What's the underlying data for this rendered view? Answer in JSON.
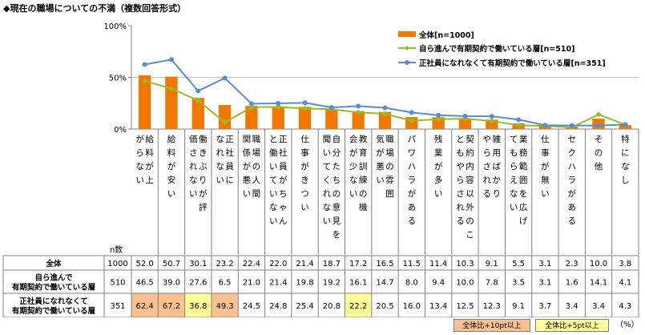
{
  "title": "◆現在の職場についての不満（複数回答形式）",
  "chart_data": {
    "type": "bar+line",
    "yticks": [
      "100%",
      "50%",
      "0%"
    ],
    "ylim": [
      0,
      100
    ],
    "grid": "horizontal at 50%",
    "legend_position": "top-right",
    "categories": [
      "給料が上がらない",
      "給料が安い",
      "働きぶりが評価されない",
      "正社員になれない",
      "職場の人間関係が悪い",
      "正社員がちゃんと働いていない",
      "仕事がきつい",
      "自分たちの意見を聞いてくれない",
      "教育訓練の機会が少ない",
      "職場の雰囲気が悪い",
      "パワハラがある",
      "残業が多い",
      "契約内容以外のこともやらされる",
      "雑用ばかりやらされる",
      "業務範囲を広げてもらえない",
      "仕事が無い",
      "セクハラがある",
      "その他",
      "特になし"
    ],
    "series": [
      {
        "name": "全体[n=1000]",
        "type": "bar",
        "color": "#f07800",
        "values": [
          52.0,
          50.7,
          30.1,
          23.2,
          22.4,
          22.0,
          21.4,
          18.7,
          17.2,
          16.5,
          11.5,
          11.4,
          10.3,
          9.1,
          5.5,
          3.1,
          2.3,
          10.0,
          3.8
        ]
      },
      {
        "name": "自ら進んで有期契約で働いている層[n=510]",
        "type": "line",
        "color": "#9bbb20",
        "values": [
          46.5,
          39.0,
          27.6,
          6.5,
          21.0,
          21.4,
          19.8,
          19.2,
          16.1,
          14.7,
          8.0,
          9.4,
          10.0,
          7.8,
          3.5,
          3.1,
          1.6,
          14.1,
          4.1
        ]
      },
      {
        "name": "正社員になれなくて有期契約で働いている層[n=351]",
        "type": "line",
        "color": "#5b8bd0",
        "values": [
          62.4,
          67.2,
          36.8,
          49.3,
          24.5,
          24.8,
          25.4,
          20.8,
          22.2,
          20.5,
          16.0,
          13.4,
          12.5,
          12.3,
          9.1,
          3.7,
          3.4,
          3.4,
          4.3
        ]
      }
    ]
  },
  "table": {
    "n_header": "n数",
    "rows": [
      {
        "label_lines": [
          "全体"
        ],
        "n": "1000",
        "values": [
          "52.0",
          "50.7",
          "30.1",
          "23.2",
          "22.4",
          "22.0",
          "21.4",
          "18.7",
          "17.2",
          "16.5",
          "11.5",
          "11.4",
          "10.3",
          "9.1",
          "5.5",
          "3.1",
          "2.3",
          "10.0",
          "3.8"
        ],
        "highlights": []
      },
      {
        "label_lines": [
          "自ら進んで",
          "有期契約で働いている層"
        ],
        "n": "510",
        "values": [
          "46.5",
          "39.0",
          "27.6",
          "6.5",
          "21.0",
          "21.4",
          "19.8",
          "19.2",
          "16.1",
          "14.7",
          "8.0",
          "9.4",
          "10.0",
          "7.8",
          "3.5",
          "3.1",
          "1.6",
          "14.1",
          "4.1"
        ],
        "highlights": []
      },
      {
        "label_lines": [
          "正社員になれなくて",
          "有期契約で働いている層"
        ],
        "n": "351",
        "values": [
          "62.4",
          "67.2",
          "36.8",
          "49.3",
          "24.5",
          "24.8",
          "25.4",
          "20.8",
          "22.2",
          "20.5",
          "16.0",
          "13.4",
          "12.5",
          "12.3",
          "9.1",
          "3.7",
          "3.4",
          "3.4",
          "4.3"
        ],
        "highlights": [
          "plus10",
          "plus10",
          "plus5",
          "plus10",
          "",
          "",
          "",
          "",
          "plus5",
          "",
          "",
          "",
          "",
          "",
          "",
          "",
          "",
          "",
          ""
        ]
      }
    ],
    "highlight_colors": {
      "plus10": "#fac090",
      "plus5": "#ffff99"
    }
  },
  "notes": {
    "plus10": "全体比+10pt以上",
    "plus5": "全体比+5pt以上",
    "unit": "（%）"
  }
}
